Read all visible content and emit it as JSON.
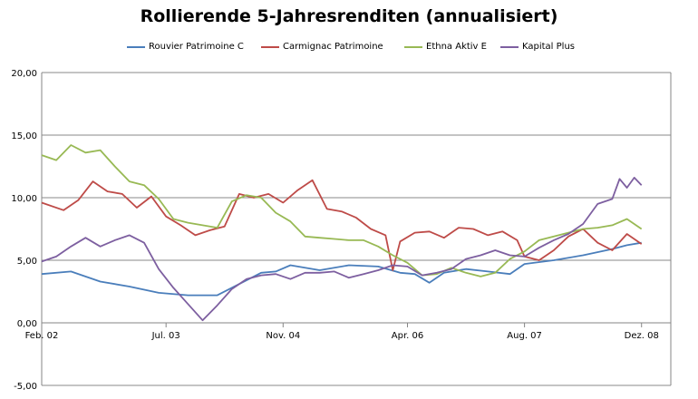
{
  "chart_data": {
    "type": "line",
    "title": "Rollierende 5-Jahresrenditen (annualisiert)",
    "xlabel": "",
    "ylabel": "",
    "ylim": [
      -5,
      20
    ],
    "yticks": [
      "20,00",
      "15,00",
      "10,00",
      "5,00",
      "0,00",
      "-5,00"
    ],
    "ytick_values": [
      20,
      15,
      10,
      5,
      0,
      -5
    ],
    "xlim": [
      0,
      86
    ],
    "xticks": [
      "Feb. 02",
      "Jul. 03",
      "Nov. 04",
      "Apr. 06",
      "Aug. 07",
      "Dez. 08"
    ],
    "xtick_values": [
      0,
      17,
      33,
      50,
      66,
      82
    ],
    "grid": true,
    "legend_position": "top",
    "series": [
      {
        "name": "Rouvier Patrimoine C",
        "color": "#4a7ebb",
        "x": [
          0,
          4,
          8,
          12,
          16,
          20,
          24,
          27,
          30,
          32,
          34,
          38,
          42,
          46,
          49,
          51,
          53,
          55,
          58,
          61,
          64,
          66,
          70,
          74,
          78,
          80,
          82
        ],
        "y": [
          3.9,
          4.1,
          3.3,
          2.9,
          2.4,
          2.2,
          2.2,
          3.1,
          4.0,
          4.1,
          4.6,
          4.2,
          4.6,
          4.5,
          4.0,
          3.9,
          3.2,
          4.0,
          4.3,
          4.1,
          3.9,
          4.7,
          5.0,
          5.4,
          5.9,
          6.2,
          6.4
        ]
      },
      {
        "name": "Carmignac Patrimoine",
        "color": "#be4b48",
        "x": [
          0,
          3,
          5,
          7,
          9,
          11,
          13,
          15,
          17,
          19,
          21,
          23,
          25,
          27,
          29,
          31,
          33,
          35,
          37,
          39,
          41,
          43,
          45,
          47,
          48,
          49,
          51,
          53,
          55,
          57,
          59,
          61,
          63,
          65,
          66,
          68,
          70,
          72,
          74,
          76,
          78,
          80,
          82
        ],
        "y": [
          9.6,
          9.0,
          9.8,
          11.3,
          10.5,
          10.3,
          9.2,
          10.1,
          8.5,
          7.8,
          7.0,
          7.4,
          7.7,
          10.3,
          10.0,
          10.3,
          9.6,
          10.6,
          11.4,
          9.1,
          8.9,
          8.4,
          7.5,
          7.0,
          4.2,
          6.5,
          7.2,
          7.3,
          6.8,
          7.6,
          7.5,
          7.0,
          7.3,
          6.6,
          5.3,
          5.0,
          5.8,
          6.9,
          7.5,
          6.4,
          5.8,
          7.1,
          6.3
        ]
      },
      {
        "name": "Ethna Aktiv E",
        "color": "#98b954",
        "x": [
          0,
          2,
          4,
          6,
          8,
          10,
          12,
          14,
          16,
          18,
          20,
          22,
          24,
          26,
          28,
          30,
          32,
          34,
          36,
          38,
          40,
          42,
          44,
          46,
          48,
          50,
          52,
          54,
          56,
          58,
          60,
          62,
          64,
          66,
          68,
          70,
          72,
          74,
          76,
          78,
          80,
          82
        ],
        "y": [
          13.4,
          13.0,
          14.2,
          13.6,
          13.8,
          12.5,
          11.3,
          11.0,
          9.9,
          8.3,
          8.0,
          7.8,
          7.6,
          9.7,
          10.2,
          10.0,
          8.8,
          8.1,
          6.9,
          6.8,
          6.7,
          6.6,
          6.6,
          6.1,
          5.4,
          4.8,
          3.8,
          3.9,
          4.4,
          4.0,
          3.7,
          4.0,
          5.1,
          5.7,
          6.6,
          6.9,
          7.2,
          7.5,
          7.6,
          7.8,
          8.3,
          7.5
        ]
      },
      {
        "name": "Kapital Plus",
        "color": "#7d5fa0",
        "x": [
          0,
          2,
          4,
          6,
          8,
          10,
          12,
          14,
          16,
          18,
          20,
          22,
          24,
          26,
          28,
          30,
          32,
          34,
          36,
          38,
          40,
          42,
          44,
          46,
          48,
          50,
          52,
          54,
          56,
          58,
          60,
          62,
          64,
          66,
          68,
          70,
          72,
          74,
          76,
          78,
          79,
          80,
          81,
          82
        ],
        "y": [
          4.9,
          5.3,
          6.1,
          6.8,
          6.1,
          6.6,
          7.0,
          6.4,
          4.3,
          2.8,
          1.5,
          0.2,
          1.4,
          2.7,
          3.5,
          3.8,
          3.9,
          3.5,
          4.0,
          4.0,
          4.1,
          3.6,
          3.9,
          4.2,
          4.6,
          4.5,
          3.8,
          4.0,
          4.3,
          5.1,
          5.4,
          5.8,
          5.4,
          5.3,
          6.0,
          6.6,
          7.1,
          7.9,
          9.5,
          9.9,
          11.5,
          10.8,
          11.6,
          11.0
        ]
      }
    ]
  }
}
